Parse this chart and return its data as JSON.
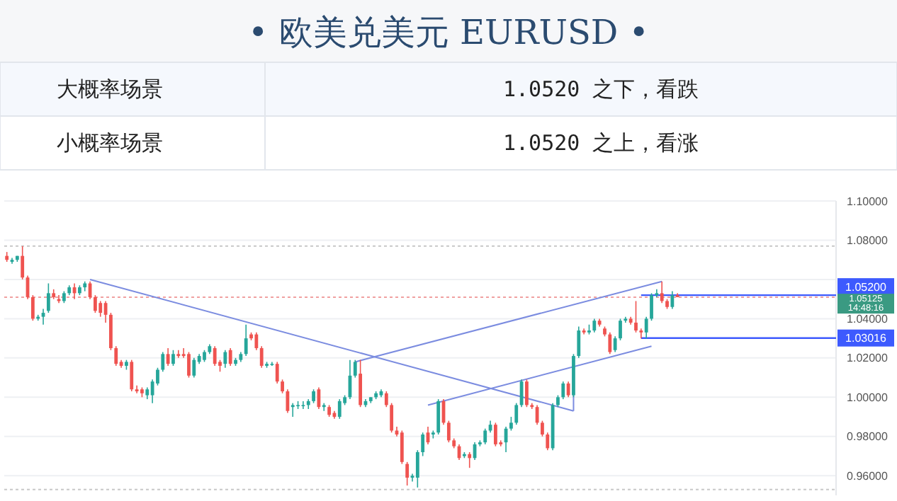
{
  "chart_data": {
    "type": "candlestick",
    "title": "• 欧美兑美元 EURUSD •",
    "annotations": [
      "大概率场景",
      "1.0520 之下，看跌",
      "小概率场景",
      "1.0520 之上，看涨",
      "1.05125 14:48:16"
    ],
    "categories": [
      null,
      null,
      null,
      null,
      null,
      null,
      null,
      null,
      null,
      null,
      null,
      null,
      null,
      null,
      null,
      null,
      null,
      null,
      null,
      null,
      null,
      null,
      null,
      null,
      null,
      null,
      null,
      null,
      null,
      null,
      null,
      null,
      null,
      null,
      null,
      null,
      null,
      null,
      null,
      null,
      null,
      null,
      null,
      null,
      null,
      null,
      null,
      null,
      null,
      null,
      null,
      null,
      null,
      null,
      null,
      null,
      null,
      null,
      null,
      null,
      null,
      null,
      null,
      null,
      null,
      null,
      null,
      null,
      null,
      null,
      null,
      null,
      null,
      null,
      null,
      null,
      null,
      null,
      null,
      null,
      null,
      null,
      null,
      null,
      null,
      null,
      null,
      null,
      null,
      null,
      null,
      null,
      null,
      null,
      null,
      null,
      null,
      null,
      null,
      null,
      null,
      null,
      null,
      null,
      null,
      null,
      null,
      null,
      null,
      null,
      null,
      null,
      null,
      null,
      null,
      null,
      null,
      null,
      null,
      null,
      null,
      null,
      null,
      null,
      null,
      null,
      null,
      null,
      null,
      null,
      null,
      null,
      null,
      null,
      null,
      null,
      null,
      null,
      null,
      null,
      null,
      null,
      null,
      null,
      null,
      null,
      null,
      null,
      null,
      null,
      null,
      null,
      null,
      null,
      null,
      null,
      null,
      null,
      null,
      null
    ],
    "ohlc": [
      [
        1.072,
        1.074,
        1.069,
        1.07
      ],
      [
        1.069,
        1.071,
        1.068,
        1.07
      ],
      [
        1.07,
        1.072,
        1.069,
        1.072
      ],
      [
        1.072,
        1.077,
        1.06,
        1.061
      ],
      [
        1.061,
        1.062,
        1.05,
        1.051
      ],
      [
        1.051,
        1.052,
        1.039,
        1.04
      ],
      [
        1.04,
        1.042,
        1.039,
        1.041
      ],
      [
        1.041,
        1.045,
        1.037,
        1.043
      ],
      [
        1.044,
        1.058,
        1.043,
        1.053
      ],
      [
        1.053,
        1.055,
        1.05,
        1.051
      ],
      [
        1.05,
        1.052,
        1.048,
        1.049
      ],
      [
        1.049,
        1.054,
        1.048,
        1.053
      ],
      [
        1.053,
        1.057,
        1.052,
        1.056
      ],
      [
        1.056,
        1.058,
        1.05,
        1.053
      ],
      [
        1.053,
        1.057,
        1.052,
        1.056
      ],
      [
        1.056,
        1.059,
        1.054,
        1.058
      ],
      [
        1.058,
        1.059,
        1.05,
        1.051
      ],
      [
        1.051,
        1.052,
        1.043,
        1.044
      ],
      [
        1.048,
        1.049,
        1.041,
        1.043
      ],
      [
        1.048,
        1.049,
        1.038,
        1.042
      ],
      [
        1.042,
        1.043,
        1.024,
        1.025
      ],
      [
        1.025,
        1.026,
        1.016,
        1.017
      ],
      [
        1.018,
        1.019,
        1.015,
        1.016
      ],
      [
        1.016,
        1.019,
        1.014,
        1.018
      ],
      [
        1.018,
        1.019,
        1.003,
        1.004
      ],
      [
        1.004,
        1.006,
        1.002,
        1.003
      ],
      [
        1.004,
        1.005,
        1.0,
        1.002
      ],
      [
        1.001,
        1.005,
        0.999,
        1.004
      ],
      [
        1.001,
        1.009,
        0.997,
        1.008
      ],
      [
        1.007,
        1.015,
        1.006,
        1.014
      ],
      [
        1.014,
        1.023,
        1.013,
        1.022
      ],
      [
        1.022,
        1.025,
        1.016,
        1.017
      ],
      [
        1.017,
        1.024,
        1.016,
        1.022
      ],
      [
        1.022,
        1.024,
        1.02,
        1.021
      ],
      [
        1.022,
        1.025,
        1.02,
        1.021
      ],
      [
        1.022,
        1.023,
        1.01,
        1.011
      ],
      [
        1.011,
        1.02,
        1.01,
        1.019
      ],
      [
        1.018,
        1.022,
        1.017,
        1.021
      ],
      [
        1.019,
        1.024,
        1.018,
        1.023
      ],
      [
        1.023,
        1.027,
        1.022,
        1.026
      ],
      [
        1.025,
        1.026,
        1.016,
        1.017
      ],
      [
        1.018,
        1.019,
        1.013,
        1.016
      ],
      [
        1.017,
        1.024,
        1.015,
        1.023
      ],
      [
        1.024,
        1.025,
        1.016,
        1.017
      ],
      [
        1.017,
        1.02,
        1.016,
        1.019
      ],
      [
        1.019,
        1.023,
        1.018,
        1.022
      ],
      [
        1.022,
        1.037,
        1.021,
        1.03
      ],
      [
        1.032,
        1.033,
        1.029,
        1.03
      ],
      [
        1.032,
        1.033,
        1.024,
        1.025
      ],
      [
        1.025,
        1.026,
        1.015,
        1.016
      ],
      [
        1.016,
        1.018,
        1.015,
        1.017
      ],
      [
        1.017,
        1.018,
        1.016,
        1.017
      ],
      [
        1.017,
        1.018,
        1.007,
        1.008
      ],
      [
        1.008,
        1.009,
        1.002,
        1.003
      ],
      [
        1.003,
        1.004,
        0.992,
        0.993
      ],
      [
        0.995,
        0.997,
        0.99,
        0.996
      ],
      [
        0.996,
        0.998,
        0.994,
        0.996
      ],
      [
        0.996,
        0.998,
        0.994,
        0.996
      ],
      [
        0.996,
        0.999,
        0.994,
        0.998
      ],
      [
        0.998,
        1.004,
        0.997,
        1.003
      ],
      [
        1.004,
        1.005,
        0.994,
        0.995
      ],
      [
        0.995,
        0.997,
        0.993,
        0.996
      ],
      [
        0.995,
        0.996,
        0.99,
        0.991
      ],
      [
        0.992,
        0.993,
        0.989,
        0.99
      ],
      [
        0.99,
        0.999,
        0.989,
        0.998
      ],
      [
        0.997,
        1.001,
        0.996,
        1.0
      ],
      [
        1.0,
        1.019,
        0.999,
        1.011
      ],
      [
        1.011,
        1.019,
        1.01,
        1.018
      ],
      [
        1.012,
        1.019,
        0.995,
        0.996
      ],
      [
        0.996,
        0.999,
        0.995,
        0.998
      ],
      [
        0.998,
        1.0,
        0.997,
        1.0
      ],
      [
        1.0,
        1.003,
        0.999,
        1.002
      ],
      [
        1.001,
        1.004,
        1.0,
        1.003
      ],
      [
        1.002,
        1.003,
        0.995,
        0.996
      ],
      [
        0.996,
        0.997,
        0.982,
        0.983
      ],
      [
        0.983,
        0.985,
        0.98,
        0.981
      ],
      [
        0.982,
        0.983,
        0.966,
        0.967
      ],
      [
        0.966,
        0.967,
        0.955,
        0.959
      ],
      [
        0.959,
        0.961,
        0.957,
        0.96
      ],
      [
        0.959,
        0.973,
        0.954,
        0.972
      ],
      [
        0.972,
        0.982,
        0.97,
        0.981
      ],
      [
        0.982,
        0.985,
        0.976,
        0.977
      ],
      [
        0.981,
        0.983,
        0.979,
        0.982
      ],
      [
        0.982,
        0.999,
        0.981,
        0.998
      ],
      [
        0.998,
        0.999,
        0.986,
        0.987
      ],
      [
        0.987,
        0.988,
        0.977,
        0.978
      ],
      [
        0.978,
        0.979,
        0.974,
        0.975
      ],
      [
        0.975,
        0.976,
        0.968,
        0.969
      ],
      [
        0.97,
        0.972,
        0.969,
        0.971
      ],
      [
        0.971,
        0.972,
        0.964,
        0.969
      ],
      [
        0.969,
        0.977,
        0.968,
        0.976
      ],
      [
        0.976,
        0.978,
        0.975,
        0.977
      ],
      [
        0.977,
        0.984,
        0.976,
        0.983
      ],
      [
        0.983,
        0.988,
        0.982,
        0.986
      ],
      [
        0.986,
        0.987,
        0.975,
        0.976
      ],
      [
        0.977,
        0.978,
        0.975,
        0.976
      ],
      [
        0.977,
        0.985,
        0.972,
        0.984
      ],
      [
        0.984,
        0.99,
        0.983,
        0.987
      ],
      [
        0.987,
        0.997,
        0.986,
        0.996
      ],
      [
        0.996,
        1.009,
        0.995,
        1.008
      ],
      [
        1.008,
        1.009,
        0.995,
        0.996
      ],
      [
        0.996,
        0.997,
        0.994,
        0.995
      ],
      [
        0.995,
        0.996,
        0.986,
        0.987
      ],
      [
        0.987,
        0.988,
        0.98,
        0.981
      ],
      [
        0.981,
        0.982,
        0.973,
        0.974
      ],
      [
        0.974,
        0.997,
        0.973,
        0.996
      ],
      [
        0.996,
        1.001,
        0.995,
        1.0
      ],
      [
        1.0,
        1.008,
        0.999,
        1.007
      ],
      [
        1.007,
        1.008,
        1.0,
        1.001
      ],
      [
        1.001,
        1.022,
        1.0,
        1.021
      ],
      [
        1.021,
        1.036,
        1.02,
        1.034
      ],
      [
        1.034,
        1.035,
        1.032,
        1.033
      ],
      [
        1.033,
        1.037,
        1.032,
        1.034
      ],
      [
        1.034,
        1.04,
        1.033,
        1.039
      ],
      [
        1.039,
        1.04,
        1.036,
        1.037
      ],
      [
        1.035,
        1.036,
        1.031,
        1.032
      ],
      [
        1.032,
        1.033,
        1.022,
        1.023
      ],
      [
        1.024,
        1.031,
        1.023,
        1.03
      ],
      [
        1.03,
        1.04,
        1.029,
        1.039
      ],
      [
        1.039,
        1.041,
        1.038,
        1.04
      ],
      [
        1.04,
        1.041,
        1.037,
        1.038
      ],
      [
        1.038,
        1.049,
        1.033,
        1.034
      ],
      [
        1.034,
        1.035,
        1.03,
        1.033
      ],
      [
        1.033,
        1.041,
        1.03,
        1.04
      ],
      [
        1.04,
        1.053,
        1.039,
        1.052
      ],
      [
        1.052,
        1.055,
        1.051,
        1.053
      ],
      [
        1.053,
        1.059,
        1.048,
        1.049
      ],
      [
        1.049,
        1.05,
        1.045,
        1.046
      ],
      [
        1.046,
        1.054,
        1.045,
        1.052
      ],
      [
        1.052,
        1.053,
        1.051,
        1.051
      ],
      null,
      null,
      null,
      null,
      null,
      null,
      null,
      null,
      null,
      null,
      null,
      null,
      null,
      null,
      null,
      null,
      null,
      null,
      null,
      null,
      null,
      null,
      null,
      null,
      null,
      null,
      null,
      null,
      null,
      null
    ],
    "series": [
      {
        "type": "line",
        "color": "#7b8ce0",
        "values": [
          null,
          null,
          null,
          null,
          null,
          null,
          null,
          null,
          null,
          null,
          null,
          null,
          null,
          null,
          null,
          null,
          1.06,
          null,
          null,
          null,
          null,
          null,
          null,
          null,
          null,
          null,
          null,
          null,
          null,
          null,
          null,
          null,
          null,
          null,
          null,
          null,
          null,
          null,
          null,
          null,
          null,
          null,
          null,
          null,
          null,
          null,
          null,
          null,
          null,
          null,
          null,
          null,
          null,
          null,
          null,
          null,
          null,
          null,
          null,
          null,
          null,
          null,
          null,
          null,
          null,
          null,
          null,
          null,
          null,
          null,
          null,
          null,
          null,
          null,
          null,
          null,
          null,
          null,
          null,
          null,
          null,
          null,
          null,
          null,
          null,
          null,
          null,
          null,
          null,
          null,
          null,
          null,
          null,
          null,
          null,
          null,
          null,
          null,
          null,
          null,
          null,
          null,
          null,
          null,
          null,
          null,
          null,
          null,
          null,
          0.993,
          null,
          null,
          null,
          null,
          null,
          null,
          null,
          null,
          null,
          null,
          null,
          null,
          null,
          null,
          null,
          null,
          null,
          null,
          null,
          null,
          null,
          null,
          null,
          null,
          null,
          null,
          null,
          null,
          null,
          null,
          null,
          null,
          null,
          null,
          null,
          null,
          null,
          null,
          null,
          null,
          null,
          null,
          null,
          null,
          null,
          null,
          null,
          null,
          null,
          null
        ]
      },
      {
        "type": "line",
        "color": "#7b8ce0",
        "values": [
          null,
          null,
          null,
          null,
          null,
          null,
          null,
          null,
          null,
          null,
          null,
          null,
          null,
          null,
          null,
          null,
          null,
          null,
          null,
          null,
          null,
          null,
          null,
          null,
          null,
          null,
          null,
          null,
          null,
          null,
          null,
          null,
          null,
          null,
          null,
          null,
          null,
          null,
          null,
          null,
          null,
          null,
          null,
          null,
          null,
          null,
          null,
          null,
          null,
          null,
          null,
          null,
          null,
          null,
          null,
          null,
          null,
          null,
          null,
          null,
          null,
          null,
          null,
          null,
          null,
          null,
          null,
          1.018,
          null,
          null,
          null,
          null,
          null,
          null,
          null,
          null,
          null,
          null,
          null,
          null,
          null,
          null,
          null,
          null,
          null,
          null,
          null,
          null,
          null,
          null,
          null,
          null,
          null,
          null,
          null,
          null,
          null,
          null,
          null,
          null,
          null,
          null,
          null,
          null,
          null,
          null,
          null,
          null,
          null,
          null,
          null,
          null,
          null,
          null,
          null,
          null,
          null,
          null,
          null,
          null,
          null,
          null,
          null,
          null,
          null,
          null,
          1.059,
          null,
          null,
          null,
          null,
          null,
          null,
          null,
          null,
          null,
          null,
          null,
          null,
          null,
          null,
          null,
          null,
          null,
          null,
          null,
          null,
          null,
          null,
          null,
          null,
          null,
          null,
          null,
          null,
          null,
          null,
          null,
          null,
          null
        ]
      },
      {
        "type": "line",
        "color": "#7b8ce0",
        "values": [
          null,
          null,
          null,
          null,
          null,
          null,
          null,
          null,
          null,
          null,
          null,
          null,
          null,
          null,
          null,
          null,
          null,
          null,
          null,
          null,
          null,
          null,
          null,
          null,
          null,
          null,
          null,
          null,
          null,
          null,
          null,
          null,
          null,
          null,
          null,
          null,
          null,
          null,
          null,
          null,
          null,
          null,
          null,
          null,
          null,
          null,
          null,
          null,
          null,
          null,
          null,
          null,
          null,
          null,
          null,
          null,
          null,
          null,
          null,
          null,
          null,
          null,
          null,
          null,
          null,
          null,
          null,
          null,
          null,
          null,
          null,
          null,
          null,
          null,
          null,
          null,
          null,
          null,
          null,
          null,
          null,
          0.996,
          null,
          null,
          null,
          null,
          null,
          null,
          null,
          null,
          null,
          null,
          null,
          null,
          null,
          null,
          null,
          null,
          null,
          null,
          null,
          null,
          null,
          null,
          null,
          null,
          null,
          null,
          null,
          null,
          null,
          null,
          null,
          null,
          null,
          null,
          null,
          null,
          null,
          null,
          null,
          null,
          null,
          null,
          1.026,
          null,
          null,
          null,
          null,
          null,
          null,
          null,
          null,
          null,
          null,
          null,
          null,
          null,
          null,
          null,
          null,
          null,
          null,
          null,
          null,
          null,
          null,
          null,
          null,
          null,
          null,
          null,
          null,
          null,
          null,
          null,
          null,
          null,
          null,
          null
        ]
      }
    ],
    "ylim": [
      0.95,
      1.1
    ],
    "yticks": [
      {
        "value": 0.96,
        "label": "0.96000"
      },
      {
        "value": 0.98,
        "label": "0.98000"
      },
      {
        "value": 1.0,
        "label": "1.00000"
      },
      {
        "value": 1.02,
        "label": "1.02000"
      },
      {
        "value": 1.04,
        "label": "1.04000"
      },
      {
        "value": 1.06,
        "label": null
      },
      {
        "value": 1.08,
        "label": "1.08000"
      },
      {
        "value": 1.1,
        "label": "1.10000"
      }
    ],
    "grid": "y",
    "tick_labels": "y",
    "ref_lines": [
      {
        "axis": "y",
        "value": 1.052,
        "label": "1.05200",
        "color": "#3d5afe"
      },
      {
        "axis": "y",
        "value": 1.03016,
        "label": "1.03016",
        "color": "#3d5afe"
      },
      {
        "axis": "y",
        "value": 1.077,
        "color": "#c8c8c8",
        "line_style": "dotted"
      },
      {
        "axis": "y",
        "value": 1.051,
        "color": "#f0a0a0",
        "line_style": "dotted"
      },
      {
        "axis": "y",
        "value": 0.953,
        "color": "#c8c8c8",
        "line_style": "dotted"
      }
    ]
  }
}
